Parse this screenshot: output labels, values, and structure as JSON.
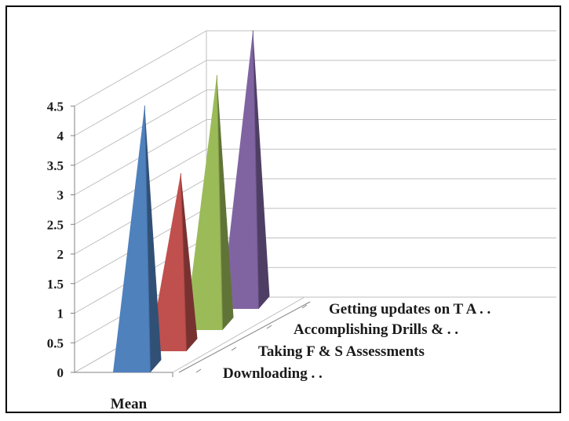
{
  "chart_data": {
    "type": "3d-cone-bar",
    "categories": [
      "Mean"
    ],
    "series": [
      {
        "name": "Downloading . .",
        "values": [
          4.4
        ],
        "color": "#4f81bd"
      },
      {
        "name": "Taking F & S Assessments",
        "values": [
          2.9
        ],
        "color": "#c0504d"
      },
      {
        "name": "Accomplishing Drills & . .",
        "values": [
          4.2
        ],
        "color": "#9bbb59"
      },
      {
        "name": "Getting updates on T A . .",
        "values": [
          4.6
        ],
        "color": "#8064a2"
      }
    ],
    "yticks": [
      "0",
      "0.5",
      "1",
      "1.5",
      "2",
      "2.5",
      "3",
      "3.5",
      "4",
      "4.5"
    ],
    "ylim": [
      0,
      4.5
    ],
    "grid": true
  }
}
